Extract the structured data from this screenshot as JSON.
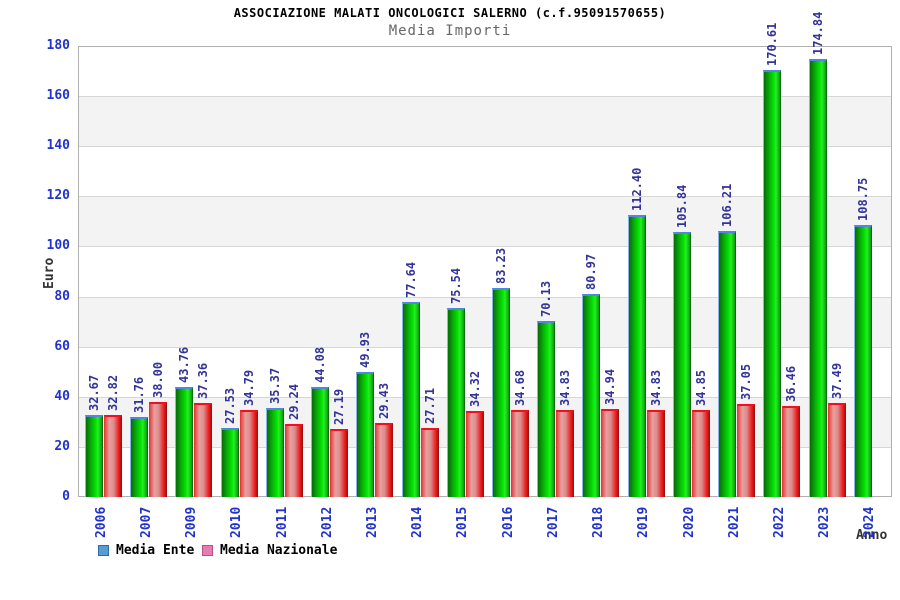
{
  "header": {
    "title": "ASSOCIAZIONE MALATI ONCOLOGICI SALERNO (c.f.95091570655)",
    "subtitle": "Media Importi"
  },
  "axes": {
    "y_title": "Euro",
    "x_title": "Anno"
  },
  "legend": {
    "items": [
      {
        "label": "Media Ente",
        "swatch_fill": "#5b9bd5",
        "swatch_border": "#2e6da4"
      },
      {
        "label": "Media Nazionale",
        "swatch_fill": "#e87bb0",
        "swatch_border": "#b5508a"
      }
    ]
  },
  "colors": {
    "bar_ente": "#00cc00",
    "bar_nazionale": "#dd2222",
    "value_label": "#333399",
    "tick_label": "#2233cc",
    "band": "#f3f3f3"
  },
  "chart_data": {
    "type": "bar",
    "title": "ASSOCIAZIONE MALATI ONCOLOGICI SALERNO (c.f.95091570655)",
    "subtitle": "Media Importi",
    "xlabel": "Anno",
    "ylabel": "Euro",
    "ylim": [
      0,
      180
    ],
    "ytick_step": 20,
    "grid": "horizontal gridlines with alternating gray bands",
    "legend_position": "bottom-left",
    "value_labels": "rotated 90deg above each bar, two decimals",
    "categories": [
      "2006",
      "2007",
      "2009",
      "2010",
      "2011",
      "2012",
      "2013",
      "2014",
      "2015",
      "2016",
      "2017",
      "2018",
      "2019",
      "2020",
      "2021",
      "2022",
      "2023",
      "2024"
    ],
    "series": [
      {
        "name": "Media Ente",
        "bar_color": "green",
        "values": [
          32.67,
          31.76,
          43.76,
          27.53,
          35.37,
          44.08,
          49.93,
          77.64,
          75.54,
          83.23,
          70.13,
          80.97,
          112.4,
          105.84,
          106.21,
          170.61,
          174.84,
          108.75
        ]
      },
      {
        "name": "Media Nazionale",
        "bar_color": "red",
        "values": [
          32.82,
          38.0,
          37.36,
          34.79,
          29.24,
          27.19,
          29.43,
          27.71,
          34.32,
          34.68,
          34.83,
          34.94,
          34.83,
          34.85,
          37.05,
          36.46,
          37.49,
          null
        ]
      }
    ]
  }
}
